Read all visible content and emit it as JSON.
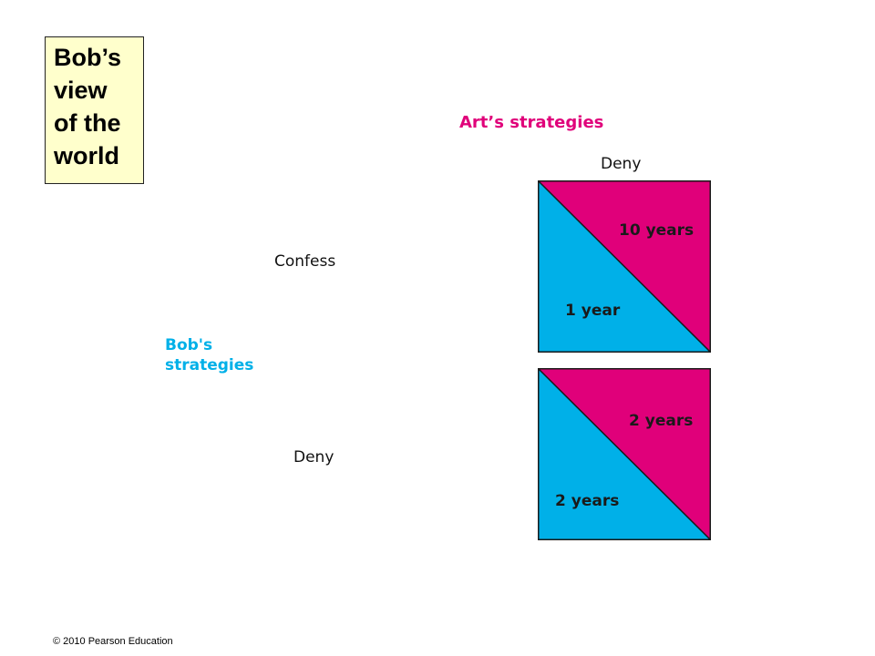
{
  "title_lines": [
    "Bob’s",
    "view",
    "of the",
    "world"
  ],
  "arts_strategies": {
    "label": "Art’s strategies",
    "columns": [
      "Deny"
    ]
  },
  "bobs_strategies": {
    "label_lines": [
      "Bob's",
      "strategies"
    ],
    "rows": [
      "Confess",
      "Deny"
    ]
  },
  "matrix": [
    {
      "row": "Confess",
      "col": "Deny",
      "art_payoff": "10 years",
      "bob_payoff": "1 year"
    },
    {
      "row": "Deny",
      "col": "Deny",
      "art_payoff": "2 years",
      "bob_payoff": "2 years"
    }
  ],
  "colors": {
    "art": "#e0007a",
    "bob": "#00b0e8",
    "title_box_bg": "#ffffcc"
  },
  "copyright": "© 2010 Pearson Education"
}
